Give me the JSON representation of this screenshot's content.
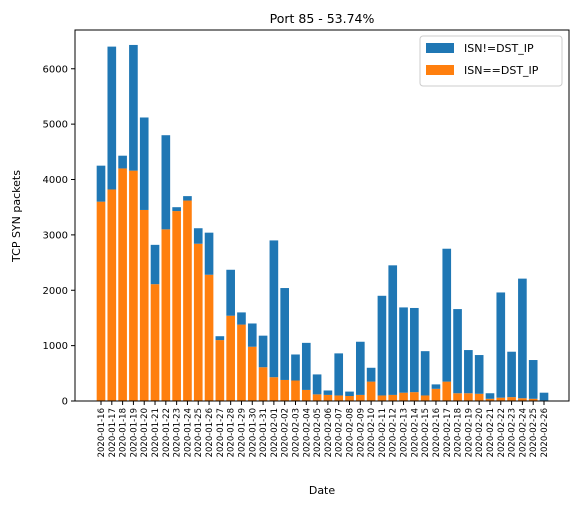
{
  "chart_data": {
    "type": "bar",
    "stacked": true,
    "title": "Port 85 - 53.74%",
    "xlabel": "Date",
    "ylabel": "TCP SYN packets",
    "ylim": [
      0,
      6700
    ],
    "yticks": [
      0,
      1000,
      2000,
      3000,
      4000,
      5000,
      6000
    ],
    "legend_position": "top-right",
    "grid": false,
    "categories": [
      "2020-01-16",
      "2020-01-17",
      "2020-01-18",
      "2020-01-19",
      "2020-01-20",
      "2020-01-21",
      "2020-01-22",
      "2020-01-23",
      "2020-01-24",
      "2020-01-25",
      "2020-01-26",
      "2020-01-27",
      "2020-01-28",
      "2020-01-29",
      "2020-01-30",
      "2020-01-31",
      "2020-02-01",
      "2020-02-02",
      "2020-02-03",
      "2020-02-04",
      "2020-02-05",
      "2020-02-06",
      "2020-02-07",
      "2020-02-08",
      "2020-02-09",
      "2020-02-10",
      "2020-02-11",
      "2020-02-12",
      "2020-02-13",
      "2020-02-14",
      "2020-02-15",
      "2020-02-16",
      "2020-02-17",
      "2020-02-18",
      "2020-02-19",
      "2020-02-20",
      "2020-02-21",
      "2020-02-22",
      "2020-02-23",
      "2020-02-24",
      "2020-02-25",
      "2020-02-26"
    ],
    "series": [
      {
        "name": "ISN==DST_IP",
        "color": "#ff7f0e",
        "values": [
          3600,
          3820,
          4200,
          4160,
          3450,
          2110,
          3100,
          3430,
          3620,
          2840,
          2280,
          1100,
          1540,
          1380,
          980,
          610,
          430,
          380,
          370,
          200,
          120,
          110,
          100,
          90,
          110,
          350,
          100,
          110,
          150,
          160,
          100,
          220,
          350,
          140,
          140,
          130,
          40,
          60,
          70,
          50,
          40,
          10
        ]
      },
      {
        "name": "ISN!=DST_IP",
        "color": "#1f77b4",
        "values": [
          650,
          2580,
          230,
          2270,
          1670,
          710,
          1700,
          70,
          80,
          280,
          760,
          70,
          830,
          220,
          420,
          570,
          2470,
          1660,
          470,
          850,
          360,
          80,
          760,
          80,
          960,
          250,
          1800,
          2340,
          1540,
          1520,
          800,
          80,
          2400,
          1520,
          780,
          700,
          100,
          1900,
          820,
          2160,
          700,
          140
        ]
      }
    ]
  }
}
